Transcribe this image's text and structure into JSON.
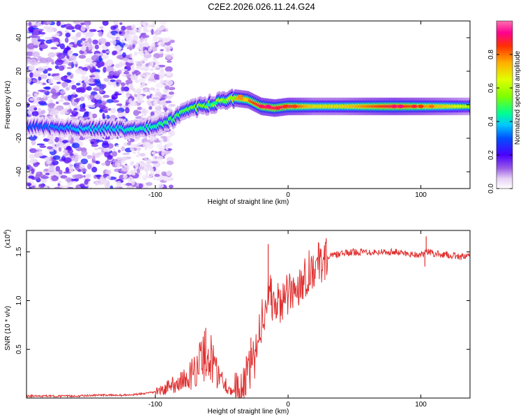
{
  "title": "C2E2.2026.026.11.24.G24",
  "chart_data": [
    {
      "type": "heatmap",
      "title": "C2E2.2026.026.11.24.G24",
      "xlabel": "Height of straight line (km)",
      "ylabel": "Frequency (Hz)",
      "xlim": [
        -197,
        137
      ],
      "ylim": [
        -50,
        50
      ],
      "x_ticks": [
        -100,
        0,
        100
      ],
      "y_ticks": [
        -40,
        -20,
        0,
        20,
        40
      ],
      "colorbar": {
        "label": "Normalized spectral amplitude",
        "range": [
          0,
          1
        ],
        "ticks": [
          0.0,
          0.2,
          0.4,
          0.6,
          0.8
        ],
        "colormap": [
          "#ffffff",
          "#e6d0f5",
          "#9b5de5",
          "#4b00ff",
          "#0050ff",
          "#00c8ff",
          "#00ff90",
          "#7fff00",
          "#e0ff00",
          "#ffb000",
          "#ff3000",
          "#ff0090",
          "#ff70b0"
        ]
      },
      "ridge": {
        "x": [
          -190,
          -170,
          -150,
          -130,
          -115,
          -100,
          -90,
          -80,
          -70,
          -60,
          -50,
          -40,
          -30,
          -20,
          -10,
          0,
          20,
          40,
          60,
          80,
          100,
          120,
          137
        ],
        "y": [
          -13,
          -14,
          -14,
          -14,
          -15,
          -13,
          -10,
          -5,
          -2,
          0,
          2,
          4,
          3,
          -1,
          -2,
          -1,
          -1,
          -1,
          -1,
          -1,
          -1,
          -1,
          -1
        ],
        "amplitude": [
          0.3,
          0.35,
          0.4,
          0.4,
          0.45,
          0.45,
          0.5,
          0.5,
          0.55,
          0.55,
          0.6,
          0.75,
          0.8,
          0.9,
          0.9,
          0.9,
          0.7,
          0.7,
          0.8,
          0.9,
          0.8,
          0.7,
          0.6
        ]
      }
    },
    {
      "type": "line",
      "xlabel": "Height of straight line (km)",
      "ylabel": "SNR (10 * v/v)",
      "y_multiplier": "(x10",
      "y_multiplier_exp": "4",
      "y_multiplier_close": ")",
      "xlim": [
        -197,
        137
      ],
      "ylim": [
        0,
        1.72
      ],
      "x_ticks": [
        -100,
        0,
        100
      ],
      "y_ticks": [
        0.5,
        1.0,
        1.5
      ],
      "y_tick_labels": [
        "0.5",
        "1.0",
        "1.5"
      ],
      "series": [
        {
          "color": "#e03030",
          "x": [
            -197,
            -180,
            -160,
            -140,
            -120,
            -105,
            -95,
            -85,
            -75,
            -68,
            -62,
            -58,
            -55,
            -50,
            -45,
            -40,
            -35,
            -30,
            -25,
            -22,
            -18,
            -15,
            -12,
            -8,
            -5,
            0,
            5,
            10,
            15,
            20,
            25,
            30,
            40,
            50,
            60,
            70,
            80,
            90,
            100,
            105,
            110,
            120,
            130,
            137
          ],
          "y": [
            0.02,
            0.02,
            0.02,
            0.03,
            0.03,
            0.05,
            0.08,
            0.15,
            0.2,
            0.35,
            0.45,
            0.4,
            0.3,
            0.2,
            0.1,
            0.05,
            0.1,
            0.25,
            0.4,
            0.7,
            0.9,
            1.1,
            1.0,
            0.95,
            1.0,
            1.05,
            1.1,
            1.2,
            1.3,
            1.35,
            1.4,
            1.45,
            1.48,
            1.5,
            1.5,
            1.5,
            1.5,
            1.48,
            1.47,
            1.5,
            1.48,
            1.47,
            1.45,
            1.45
          ],
          "spikes": [
            {
              "x": -62,
              "y": 0.72
            },
            {
              "x": -15,
              "y": 1.58
            },
            {
              "x": -28,
              "y": 0.62
            },
            {
              "x": 104,
              "y": 1.66
            },
            {
              "x": 103,
              "y": 1.35
            }
          ]
        }
      ]
    }
  ]
}
